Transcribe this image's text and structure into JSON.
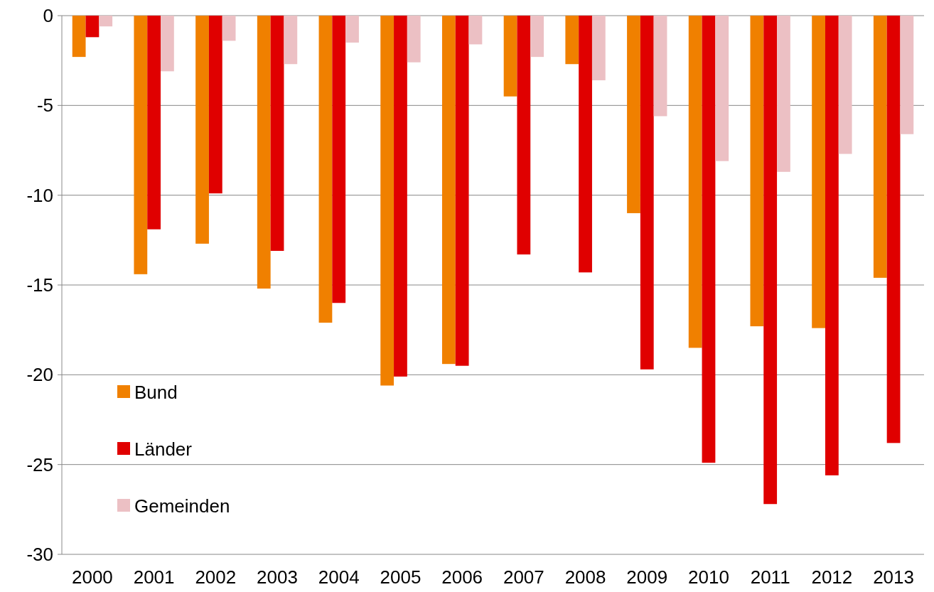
{
  "chart_data": {
    "type": "bar",
    "categories": [
      "2000",
      "2001",
      "2002",
      "2003",
      "2004",
      "2005",
      "2006",
      "2007",
      "2008",
      "2009",
      "2010",
      "2011",
      "2012",
      "2013"
    ],
    "series": [
      {
        "name": "Bund",
        "color": "#f08000",
        "values": [
          -2.3,
          -14.4,
          -12.7,
          -15.2,
          -17.1,
          -20.6,
          -19.4,
          -4.5,
          -2.7,
          -11.0,
          -18.5,
          -17.3,
          -17.4,
          -14.6
        ]
      },
      {
        "name": "Länder",
        "color": "#e00000",
        "values": [
          -1.2,
          -11.9,
          -9.9,
          -13.1,
          -16.0,
          -20.1,
          -19.5,
          -13.3,
          -14.3,
          -19.7,
          -24.9,
          -27.2,
          -25.6,
          -23.8
        ]
      },
      {
        "name": "Gemeinden",
        "color": "#ecc0c4",
        "values": [
          -0.6,
          -3.1,
          -1.4,
          -2.7,
          -1.5,
          -2.6,
          -1.6,
          -2.3,
          -3.6,
          -5.6,
          -8.1,
          -8.7,
          -7.7,
          -6.6
        ]
      }
    ],
    "ylim": [
      -30,
      0
    ],
    "yticks": [
      0,
      -5,
      -10,
      -15,
      -20,
      -25,
      -30
    ],
    "grid": "y",
    "legend": "bottom left"
  }
}
